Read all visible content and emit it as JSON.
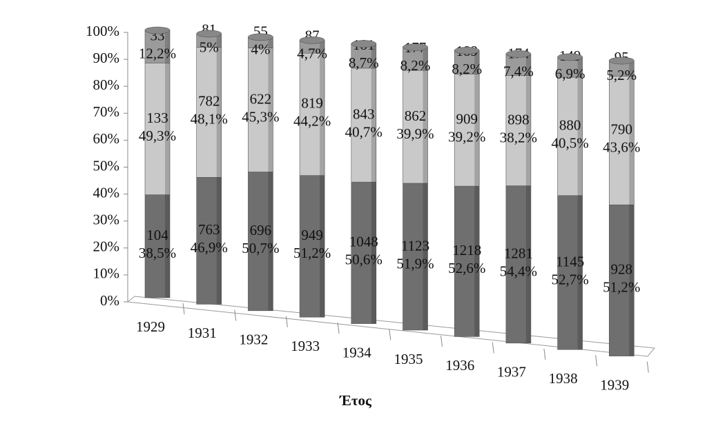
{
  "chart_data": {
    "type": "stacked-bar-3d",
    "categories": [
      "1929",
      "1931",
      "1932",
      "1933",
      "1934",
      "1935",
      "1936",
      "1937",
      "1938",
      "1939"
    ],
    "x_label": "Έτος",
    "ylim": [
      0,
      100
    ],
    "yticks": [
      {
        "value": 0,
        "label": "0%"
      },
      {
        "value": 10,
        "label": "10%"
      },
      {
        "value": 20,
        "label": "20%"
      },
      {
        "value": 30,
        "label": "30%"
      },
      {
        "value": 40,
        "label": "40%"
      },
      {
        "value": 50,
        "label": "50%"
      },
      {
        "value": 60,
        "label": "60%"
      },
      {
        "value": 70,
        "label": "70%"
      },
      {
        "value": 80,
        "label": "80%"
      },
      {
        "value": 90,
        "label": "90%"
      },
      {
        "value": 100,
        "label": "100%"
      }
    ],
    "series": [
      {
        "color": "#6f6f6f",
        "counts": [
          104,
          763,
          696,
          949,
          1048,
          1123,
          1218,
          1281,
          1145,
          928
        ],
        "values": [
          38.5,
          46.9,
          50.7,
          51.2,
          50.6,
          51.9,
          52.6,
          54.4,
          52.7,
          51.2
        ],
        "value_labels": [
          "38,5%",
          "46,9%",
          "50,7%",
          "51,2%",
          "50,6%",
          "51,9%",
          "52,6%",
          "54,4%",
          "52,7%",
          "51,2%"
        ]
      },
      {
        "color": "#c9c9c9",
        "counts": [
          133,
          782,
          622,
          819,
          843,
          862,
          909,
          898,
          880,
          790
        ],
        "values": [
          49.3,
          48.1,
          45.3,
          44.2,
          40.7,
          39.9,
          39.2,
          38.2,
          40.5,
          43.6
        ],
        "value_labels": [
          "49,3%",
          "48,1%",
          "45,3%",
          "44,2%",
          "40,7%",
          "39,9%",
          "39,2%",
          "38,2%",
          "40,5%",
          "43,6%"
        ]
      },
      {
        "color": "#9b9b9b",
        "counts": [
          33,
          81,
          55,
          87,
          181,
          177,
          189,
          174,
          149,
          95
        ],
        "values": [
          12.2,
          5,
          4,
          4.7,
          8.7,
          8.2,
          8.2,
          7.4,
          6.9,
          5.2
        ],
        "value_labels": [
          "12,2%",
          "5%",
          "4%",
          "4,7%",
          "8,7%",
          "8,2%",
          "8,2%",
          "7,4%",
          "6,9%",
          "5,2%"
        ]
      }
    ]
  }
}
